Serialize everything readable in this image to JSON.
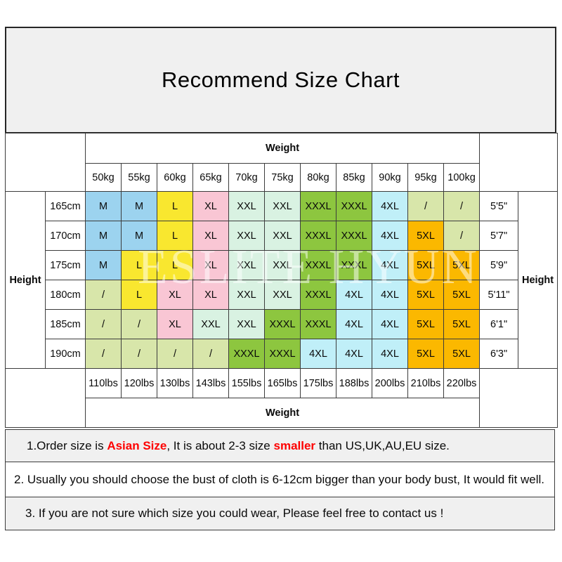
{
  "title": "Recommend Size Chart",
  "watermark": "ESLITE HYUN",
  "table": {
    "weight_header": "Weight",
    "weight_footer": "Weight",
    "height_label_left": "Height",
    "height_label_right": "Height",
    "kg_labels": [
      "50kg",
      "55kg",
      "60kg",
      "65kg",
      "70kg",
      "75kg",
      "80kg",
      "85kg",
      "90kg",
      "95kg",
      "100kg"
    ],
    "lbs_labels": [
      "110lbs",
      "120lbs",
      "130lbs",
      "143lbs",
      "155lbs",
      "165lbs",
      "175lbs",
      "188lbs",
      "200lbs",
      "210lbs",
      "220lbs"
    ],
    "rows": [
      {
        "cm": "165cm",
        "ft": "5'5\"",
        "sizes": [
          "M",
          "M",
          "L",
          "XL",
          "XXL",
          "XXL",
          "XXXL",
          "XXXL",
          "4XL",
          "/",
          "/"
        ]
      },
      {
        "cm": "170cm",
        "ft": "5'7\"",
        "sizes": [
          "M",
          "M",
          "L",
          "XL",
          "XXL",
          "XXL",
          "XXXL",
          "XXXL",
          "4XL",
          "5XL",
          "/"
        ]
      },
      {
        "cm": "175cm",
        "ft": "5'9\"",
        "sizes": [
          "M",
          "L",
          "L",
          "XL",
          "XXL",
          "XXL",
          "XXXL",
          "XXXL",
          "4XL",
          "5XL",
          "5XL"
        ]
      },
      {
        "cm": "180cm",
        "ft": "5'11\"",
        "sizes": [
          "/",
          "L",
          "XL",
          "XL",
          "XXL",
          "XXL",
          "XXXL",
          "4XL",
          "4XL",
          "5XL",
          "5XL"
        ]
      },
      {
        "cm": "185cm",
        "ft": "6'1\"",
        "sizes": [
          "/",
          "/",
          "XL",
          "XXL",
          "XXL",
          "XXXL",
          "XXXL",
          "4XL",
          "4XL",
          "5XL",
          "5XL"
        ]
      },
      {
        "cm": "190cm",
        "ft": "6'3\"",
        "sizes": [
          "/",
          "/",
          "/",
          "/",
          "XXXL",
          "XXXL",
          "4XL",
          "4XL",
          "4XL",
          "5XL",
          "5XL"
        ]
      }
    ]
  },
  "size_colors": {
    "M": "#9CD3EF",
    "L": "#F9E72F",
    "XL": "#F9C6D4",
    "XXL": "#D9F2E2",
    "XXXL": "#8DC63F",
    "4XL": "#C0EFF8",
    "5XL": "#FBB800",
    "/": "#D8E6AA"
  },
  "notes": [
    {
      "segments": [
        {
          "text": "1.Order size is ",
          "red": false
        },
        {
          "text": "Asian Size",
          "red": true
        },
        {
          "text": ", It is about 2-3 size ",
          "red": false
        },
        {
          "text": "smaller",
          "red": true
        },
        {
          "text": " than US,UK,AU,EU size.",
          "red": false
        }
      ]
    },
    {
      "segments": [
        {
          "text": "2. Usually you should choose the bust of cloth is 6-12cm bigger than your body bust, It would fit well.",
          "red": false
        }
      ]
    },
    {
      "segments": [
        {
          "text": "3. If you are not sure which size you could wear, Please feel free to contact us !",
          "red": false
        }
      ]
    }
  ],
  "colors": {
    "accent_red": "#FE0000",
    "panel_bg": "#F0F0F0",
    "border": "#3C3C3C"
  },
  "chart_data": {
    "type": "table",
    "title": "Recommend Size Chart",
    "columns_weight_kg": [
      50,
      55,
      60,
      65,
      70,
      75,
      80,
      85,
      90,
      95,
      100
    ],
    "columns_weight_lbs": [
      110,
      120,
      130,
      143,
      155,
      165,
      175,
      188,
      200,
      210,
      220
    ],
    "rows_height_cm": [
      165,
      170,
      175,
      180,
      185,
      190
    ],
    "rows_height_ft": [
      "5'5\"",
      "5'7\"",
      "5'9\"",
      "5'11\"",
      "6'1\"",
      "6'3\""
    ],
    "size_matrix": [
      [
        "M",
        "M",
        "L",
        "XL",
        "XXL",
        "XXL",
        "XXXL",
        "XXXL",
        "4XL",
        "/",
        "/"
      ],
      [
        "M",
        "M",
        "L",
        "XL",
        "XXL",
        "XXL",
        "XXXL",
        "XXXL",
        "4XL",
        "5XL",
        "/"
      ],
      [
        "M",
        "L",
        "L",
        "XL",
        "XXL",
        "XXL",
        "XXXL",
        "XXXL",
        "4XL",
        "5XL",
        "5XL"
      ],
      [
        "/",
        "L",
        "XL",
        "XL",
        "XXL",
        "XXL",
        "XXXL",
        "4XL",
        "4XL",
        "5XL",
        "5XL"
      ],
      [
        "/",
        "/",
        "XL",
        "XXL",
        "XXL",
        "XXXL",
        "XXXL",
        "4XL",
        "4XL",
        "5XL",
        "5XL"
      ],
      [
        "/",
        "/",
        "/",
        "/",
        "XXXL",
        "XXXL",
        "4XL",
        "4XL",
        "4XL",
        "5XL",
        "5XL"
      ]
    ],
    "legend": "cell color encodes size: M=blue, L=yellow, XL=pink, XXL=mint, XXXL=green, 4XL=cyan, 5XL=orange, /=not available (olive)"
  }
}
